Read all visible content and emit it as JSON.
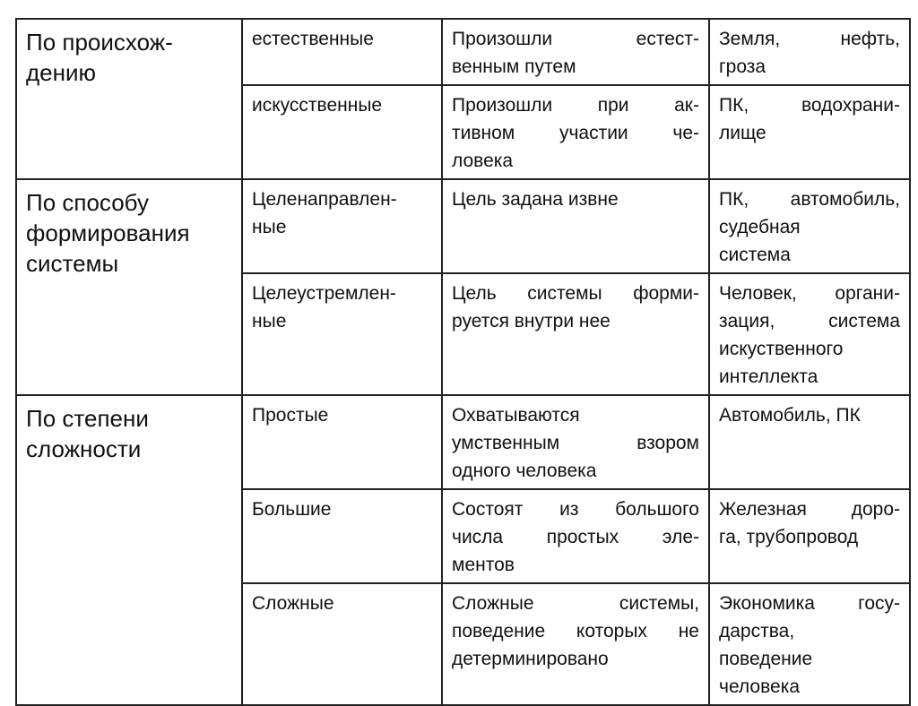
{
  "groups": [
    {
      "criterion": [
        "По происхож-",
        "дению"
      ],
      "rows": [
        {
          "type": [
            "естественные"
          ],
          "desc": [
            "Произошли естест-",
            "венным путем"
          ],
          "examples": [
            "Земля, нефть,",
            "гроза"
          ]
        },
        {
          "type": [
            "искусственные"
          ],
          "desc": [
            "Произошли при ак-",
            "тивном участии че-",
            "ловека"
          ],
          "examples": [
            "ПК, водохрани-",
            "лище"
          ]
        }
      ]
    },
    {
      "criterion": [
        "По способу",
        "формирования",
        "системы"
      ],
      "rows": [
        {
          "type": [
            "Целенаправлен-",
            "ные"
          ],
          "desc": [
            "Цель задана извне"
          ],
          "examples": [
            "ПК, автомобиль,",
            "судебная",
            "система"
          ]
        },
        {
          "type": [
            "Целеустремлен-",
            "ные"
          ],
          "desc": [
            "Цель системы форми-",
            "руется внутри нее"
          ],
          "examples": [
            "Человек, органи-",
            "зация, система",
            "искуственного",
            "интеллекта"
          ]
        }
      ]
    },
    {
      "criterion": [
        "По степени",
        "сложности"
      ],
      "rows": [
        {
          "type": [
            "Простые"
          ],
          "desc": [
            "Охватываются",
            "умственным взором",
            "одного человека"
          ],
          "examples": [
            "Автомобиль, ПК"
          ]
        },
        {
          "type": [
            "Большие"
          ],
          "desc": [
            "Состоят из большого",
            "числа простых эле-",
            "ментов"
          ],
          "examples": [
            "Железная доро-",
            "га, трубопровод"
          ]
        },
        {
          "type": [
            "Сложные"
          ],
          "desc": [
            "Сложные системы,",
            "поведение которых не",
            "детерминировано"
          ],
          "examples": [
            "Экономика госу-",
            "дарства,",
            "поведение",
            "человека"
          ]
        }
      ]
    }
  ]
}
